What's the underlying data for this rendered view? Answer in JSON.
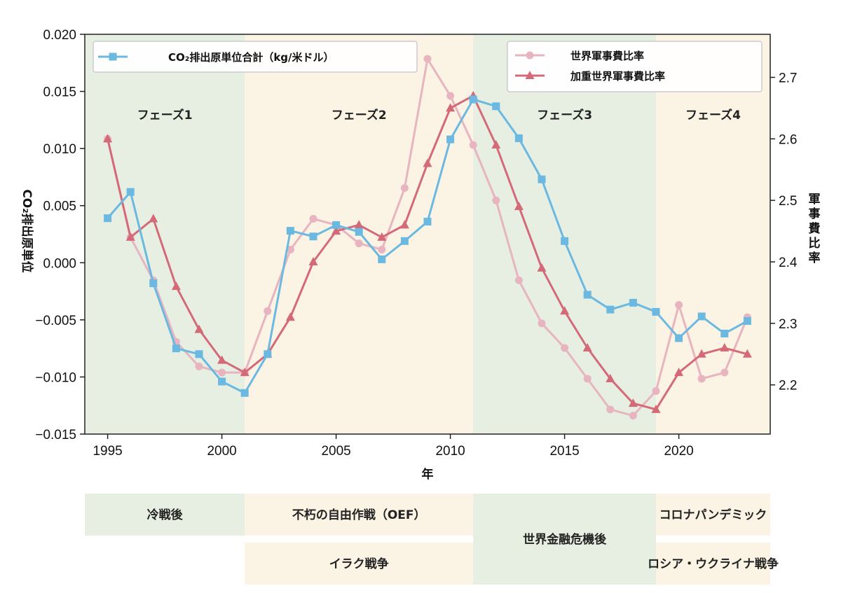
{
  "chart_data": {
    "type": "line",
    "x": [
      1995,
      1996,
      1997,
      1998,
      1999,
      2000,
      2001,
      2002,
      2003,
      2004,
      2005,
      2006,
      2007,
      2008,
      2009,
      2010,
      2011,
      2012,
      2013,
      2014,
      2015,
      2016,
      2017,
      2018,
      2019,
      2020,
      2021,
      2022,
      2023
    ],
    "xlabel": "年",
    "xticks": [
      1995,
      2000,
      2005,
      2010,
      2015,
      2020
    ],
    "xlim": [
      1994,
      2024
    ],
    "ylabel_left": "CO₂排出原単位",
    "ylim_left": [
      -0.015,
      0.02
    ],
    "yticks_left": [
      -0.015,
      -0.01,
      -0.005,
      0.0,
      0.005,
      0.01,
      0.015,
      0.02
    ],
    "ytick_labels_left": [
      "−0.015",
      "−0.010",
      "−0.005",
      "0.000",
      "0.005",
      "0.010",
      "0.015",
      "0.020"
    ],
    "ylabel_right": "軍事費比率",
    "ylim_right": [
      2.12,
      2.77
    ],
    "yticks_right": [
      2.2,
      2.3,
      2.4,
      2.5,
      2.6,
      2.7
    ],
    "ytick_labels_right": [
      "2.2",
      "2.3",
      "2.4",
      "2.5",
      "2.6",
      "2.7"
    ],
    "grid": false,
    "series": [
      {
        "name": "CO₂排出原単位合計（kg/米ドル）",
        "axis": "left",
        "color": "#6bb8e0",
        "marker": "square",
        "values": [
          0.0039,
          0.0062,
          -0.0018,
          -0.0075,
          -0.008,
          -0.0104,
          -0.0114,
          -0.008,
          0.0028,
          0.0023,
          0.0033,
          0.0027,
          0.0003,
          0.0019,
          0.0036,
          0.0108,
          0.0143,
          0.0137,
          0.0109,
          0.0073,
          0.0019,
          -0.0028,
          -0.0041,
          -0.0035,
          -0.0043,
          -0.0066,
          -0.0047,
          -0.0062,
          -0.0051
        ]
      },
      {
        "name": "世界軍事費比率",
        "axis": "right",
        "color": "#e8b4c0",
        "marker": "circle",
        "values": [
          2.6,
          2.44,
          2.37,
          2.27,
          2.23,
          2.22,
          2.22,
          2.32,
          2.42,
          2.47,
          2.46,
          2.43,
          2.42,
          2.52,
          2.73,
          2.67,
          2.59,
          2.5,
          2.37,
          2.3,
          2.26,
          2.21,
          2.16,
          2.15,
          2.19,
          2.33,
          2.21,
          2.22,
          2.31
        ]
      },
      {
        "name": "加重世界軍事費比率",
        "axis": "right",
        "color": "#d46a78",
        "marker": "triangle",
        "values": [
          2.6,
          2.44,
          2.47,
          2.36,
          2.29,
          2.24,
          2.22,
          2.25,
          2.31,
          2.4,
          2.45,
          2.46,
          2.44,
          2.46,
          2.56,
          2.65,
          2.67,
          2.59,
          2.49,
          2.39,
          2.32,
          2.26,
          2.21,
          2.17,
          2.16,
          2.22,
          2.25,
          2.26,
          2.25
        ]
      }
    ],
    "legend_left": {
      "position": "top-left"
    },
    "legend_right": {
      "position": "top-right"
    },
    "phases": [
      {
        "label": "フェーズ1",
        "start": 1994,
        "end": 2001,
        "color": "#e6efe2"
      },
      {
        "label": "フェーズ2",
        "start": 2001,
        "end": 2011,
        "color": "#fbf3e4"
      },
      {
        "label": "フェーズ3",
        "start": 2011,
        "end": 2019,
        "color": "#e6efe2"
      },
      {
        "label": "フェーズ4",
        "start": 2019,
        "end": 2024,
        "color": "#fbf3e4"
      }
    ],
    "events": [
      {
        "label": "冷戦後",
        "start": 1994,
        "end": 2001,
        "row": "top",
        "color": "#e6efe2"
      },
      {
        "label": "不朽の自由作戦（OEF）",
        "start": 2001,
        "end": 2011,
        "row": "top",
        "color": "#fbf3e4"
      },
      {
        "label": "イラク戦争",
        "start": 2001,
        "end": 2011,
        "row": "bottom",
        "color": "#fbf3e4"
      },
      {
        "label": "世界金融危機後",
        "start": 2011,
        "end": 2019,
        "row": "both",
        "color": "#e6efe2"
      },
      {
        "label": "コロナパンデミック",
        "start": 2019,
        "end": 2024,
        "row": "top",
        "color": "#fbf3e4"
      },
      {
        "label": "ロシア・ウクライナ戦争",
        "start": 2019,
        "end": 2024,
        "row": "bottom",
        "color": "#fbf3e4"
      }
    ]
  }
}
